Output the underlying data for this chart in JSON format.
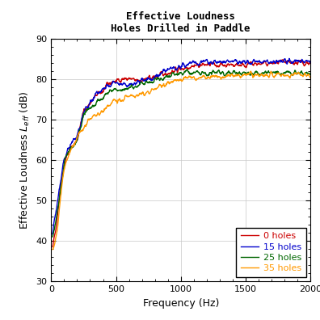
{
  "title_line1": "Effective Loudness",
  "title_line2": "Holes Drilled in Paddle",
  "xlabel": "Frequency (Hz)",
  "xlim": [
    0,
    2000
  ],
  "ylim": [
    30,
    90
  ],
  "yticks": [
    30,
    40,
    50,
    60,
    70,
    80,
    90
  ],
  "xticks": [
    0,
    500,
    1000,
    1500,
    2000
  ],
  "series": [
    {
      "label": "0 holes",
      "color": "#cc0000"
    },
    {
      "label": "15 holes",
      "color": "#0000cc"
    },
    {
      "label": "25 holes",
      "color": "#006600"
    },
    {
      "label": "35 holes",
      "color": "#ff9900"
    }
  ],
  "background_color": "#ffffff",
  "grid_color": "#c8c8c8",
  "title_fontsize": 9,
  "axis_label_fontsize": 9,
  "tick_fontsize": 8,
  "legend_fontsize": 8
}
